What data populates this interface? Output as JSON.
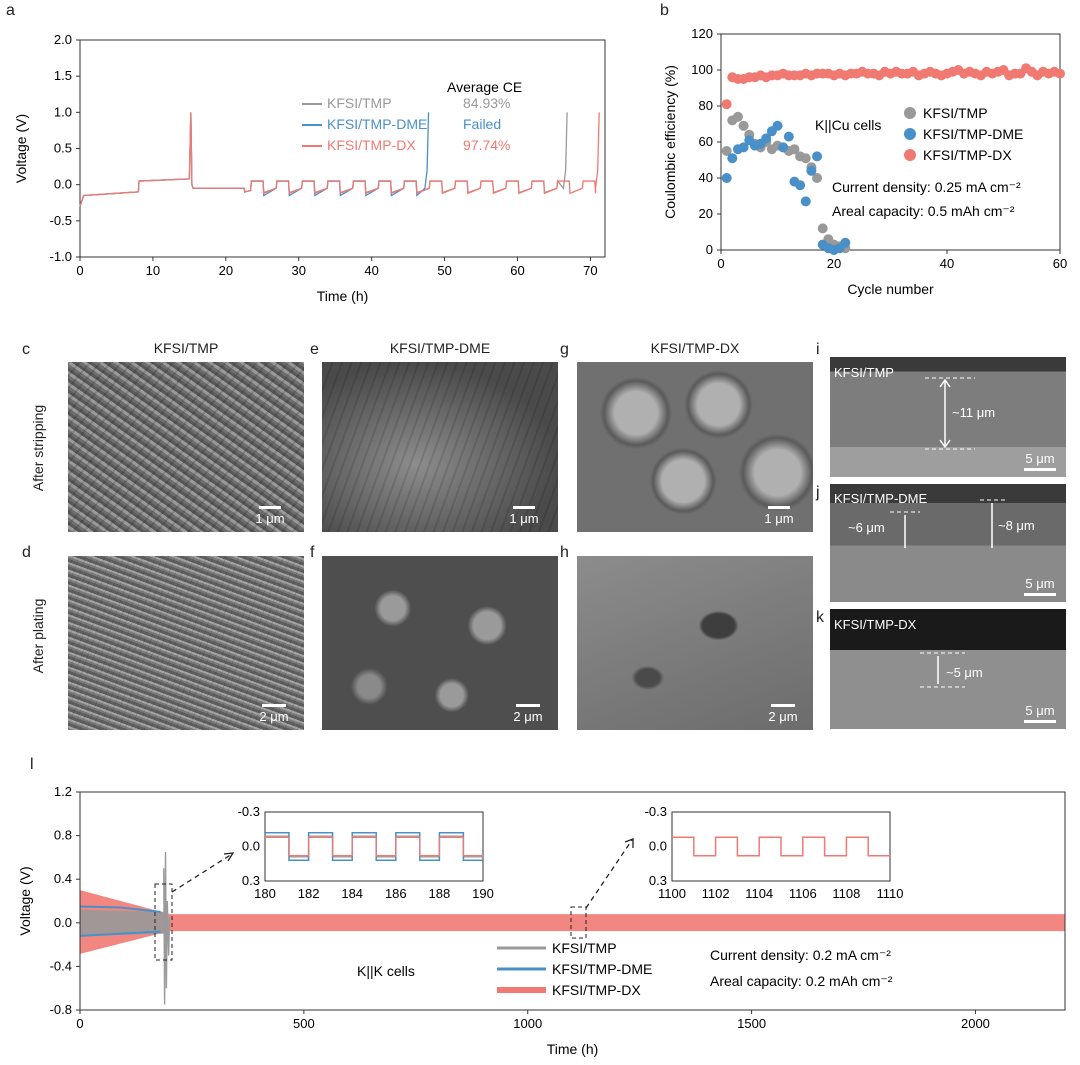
{
  "panel_labels": {
    "a": "a",
    "b": "b",
    "c": "c",
    "d": "d",
    "e": "e",
    "f": "f",
    "g": "g",
    "h": "h",
    "i": "i",
    "j": "j",
    "k": "k",
    "l": "l"
  },
  "sem": {
    "col_titles": [
      "KFSI/TMP",
      "KFSI/TMP-DME",
      "KFSI/TMP-DX"
    ],
    "row_labels": [
      "After stripping",
      "After plating"
    ],
    "scale_1um": "1 μm",
    "scale_2um": "2 μm",
    "cross_section": {
      "i": {
        "label": "KFSI/TMP",
        "thickness": "~11 μm",
        "scale": "5 μm"
      },
      "j": {
        "label": "KFSI/TMP-DME",
        "thickness_a": "~6 μm",
        "thickness_b": "~8 μm",
        "scale": "5 μm"
      },
      "k": {
        "label": "KFSI/TMP-DX",
        "thickness": "~5 μm",
        "scale": "5 μm"
      }
    }
  },
  "colors": {
    "tmp": "#999999",
    "dme": "#4a90c8",
    "dx": "#f07a72"
  },
  "chart_data": [
    {
      "panel": "a",
      "type": "line",
      "xlabel": "Time (h)",
      "ylabel": "Voltage (V)",
      "xlim": [
        0,
        72
      ],
      "ylim": [
        -1.0,
        2.0
      ],
      "xticks": [
        0,
        10,
        20,
        30,
        40,
        50,
        60,
        70
      ],
      "yticks": [
        2.0,
        1.5,
        1.0,
        0.5,
        0.0,
        -0.5,
        -1.0
      ],
      "ytick_labels": [
        "2.0",
        "1.5",
        "1.0",
        "0.5",
        "0.0",
        "-0.5",
        "-1.0"
      ],
      "legend_title": "Average CE",
      "series": [
        {
          "name": "KFSI/TMP",
          "ce": "84.93%",
          "end": 66.8
        },
        {
          "name": "KFSI/TMP-DME",
          "ce": "Failed",
          "end": 48
        },
        {
          "name": "KFSI/TMP-DX",
          "ce": "97.74%",
          "end": 71.2
        }
      ]
    },
    {
      "panel": "b",
      "type": "scatter",
      "xlabel": "Cycle number",
      "ylabel": "Coulombic efficiency (%)",
      "xlim": [
        0,
        60
      ],
      "ylim": [
        0,
        120
      ],
      "xticks": [
        0,
        20,
        40,
        60
      ],
      "yticks": [
        0,
        20,
        40,
        60,
        80,
        100,
        120
      ],
      "annotation_cell": "K||Cu cells",
      "annotation_current": "Current density: 0.25 mA cm⁻²",
      "annotation_capacity": "Areal capacity: 0.5 mAh cm⁻²",
      "series": [
        {
          "name": "KFSI/TMP",
          "x": [
            1,
            2,
            3,
            4,
            5,
            6,
            7,
            8,
            9,
            10,
            11,
            12,
            13,
            14,
            15,
            16,
            17,
            18,
            19,
            20,
            21,
            22
          ],
          "y": [
            55,
            72,
            74,
            69,
            64,
            59,
            57,
            60,
            56,
            58,
            57,
            55,
            56,
            52,
            51,
            46,
            40,
            12,
            6,
            3,
            2,
            1
          ]
        },
        {
          "name": "KFSI/TMP-DME",
          "x": [
            1,
            2,
            3,
            4,
            5,
            6,
            7,
            8,
            9,
            10,
            11,
            12,
            13,
            14,
            15,
            16,
            17,
            18,
            19,
            20,
            21,
            22
          ],
          "y": [
            40,
            51,
            56,
            57,
            61,
            58,
            59,
            62,
            66,
            69,
            57,
            63,
            38,
            36,
            27,
            44,
            52,
            3,
            1,
            0,
            1,
            4
          ]
        },
        {
          "name": "KFSI/TMP-DX",
          "x": [
            1,
            2,
            3,
            4,
            5,
            6,
            7,
            8,
            9,
            10,
            11,
            12,
            13,
            14,
            15,
            16,
            17,
            18,
            19,
            20,
            21,
            22,
            23,
            24,
            25,
            26,
            27,
            28,
            29,
            30,
            31,
            32,
            33,
            34,
            35,
            36,
            37,
            38,
            39,
            40,
            41,
            42,
            43,
            44,
            45,
            46,
            47,
            48,
            49,
            50,
            51,
            52,
            53,
            54,
            55,
            56,
            57,
            58,
            59,
            60
          ],
          "y": [
            81,
            96,
            95,
            95,
            96,
            96,
            97,
            96,
            97,
            97,
            98,
            97,
            97,
            97,
            98,
            97,
            98,
            98,
            98,
            97,
            98,
            97,
            98,
            98,
            99,
            98,
            98,
            97,
            99,
            98,
            99,
            98,
            98,
            99,
            97,
            98,
            99,
            98,
            97,
            98,
            99,
            100,
            98,
            99,
            98,
            97,
            99,
            98,
            99,
            100,
            97,
            98,
            98,
            101,
            99,
            97,
            99,
            98,
            99,
            98
          ]
        }
      ]
    },
    {
      "panel": "l",
      "type": "line",
      "xlabel": "Time (h)",
      "ylabel": "Voltage (V)",
      "xlim": [
        0,
        2200
      ],
      "ylim": [
        -0.8,
        1.2
      ],
      "xticks": [
        0,
        500,
        1000,
        1500,
        2000
      ],
      "yticks": [
        1.2,
        0.8,
        0.4,
        0.0,
        -0.4,
        -0.8
      ],
      "ytick_labels": [
        "1.2",
        "0.8",
        "0.4",
        "0.0",
        "-0.4",
        "-0.8"
      ],
      "annotation_cell": "K||K cells",
      "annotation_current": "Current density: 0.2 mA cm⁻²",
      "annotation_capacity": "Areal capacity: 0.2 mAh cm⁻²",
      "series": [
        {
          "name": "KFSI/TMP",
          "end": 200
        },
        {
          "name": "KFSI/TMP-DME",
          "end": 180
        },
        {
          "name": "KFSI/TMP-DX",
          "end": 2200
        }
      ],
      "insets": [
        {
          "xlim": [
            180,
            190
          ],
          "xticks": [
            "180",
            "182",
            "184",
            "186",
            "188",
            "190"
          ],
          "yticks": [
            "-0.3",
            "0.0",
            "0.3"
          ]
        },
        {
          "xlim": [
            1100,
            1110
          ],
          "xticks": [
            "1100",
            "1102",
            "1104",
            "1106",
            "1108",
            "1110"
          ],
          "yticks": [
            "-0.3",
            "0.0",
            "0.3"
          ]
        }
      ]
    }
  ]
}
